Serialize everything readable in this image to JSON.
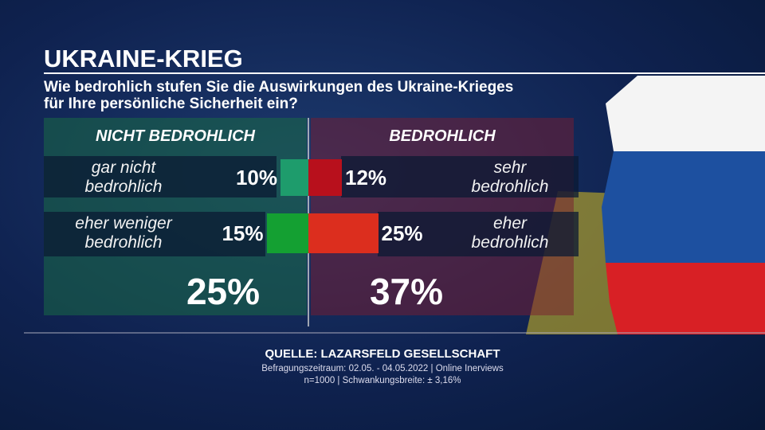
{
  "chart_data": {
    "type": "diverging_bar",
    "title": "UKRAINE-KRIEG",
    "subtitle": [
      "Wie bedrohlich stufen Sie die Auswirkungen des Ukraine-Krieges",
      "für Ihre persönliche Sicherheit ein?"
    ],
    "series": [
      {
        "name": "NICHT BEDROHLICH",
        "side": "left",
        "categories": [
          "gar nicht bedrohlich",
          "eher weniger bedrohlich"
        ],
        "values": [
          10,
          15
        ],
        "value_labels": [
          "10%",
          "15%"
        ],
        "colors": [
          "#1e9c6c",
          "#14a032"
        ],
        "total": 25,
        "total_label": "25%"
      },
      {
        "name": "BEDROHLICH",
        "side": "right",
        "categories": [
          "sehr bedrohlich",
          "eher bedrohlich"
        ],
        "values": [
          12,
          25
        ],
        "value_labels": [
          "12%",
          "25%"
        ],
        "colors": [
          "#b8101c",
          "#dc2e1e"
        ],
        "total": 37,
        "total_label": "37%"
      }
    ],
    "source": "QUELLE:  LAZARSFELD GESELLSCHAFT",
    "notes": [
      "Befragungszeitraum: 02.05. - 04.05.2022 | Online Inerviews",
      "n=1000 |  Schwankungsbreite: ± 3,16%"
    ]
  }
}
